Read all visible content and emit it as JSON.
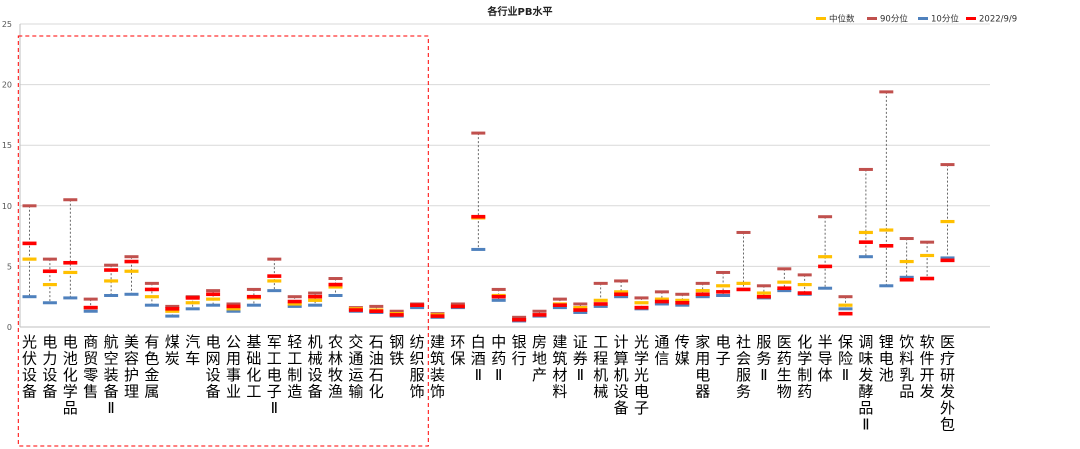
{
  "chart_data": {
    "type": "range-markers",
    "title": "各行业PB水平",
    "ylim": [
      0,
      25
    ],
    "yticks": [
      0,
      5,
      10,
      15,
      20,
      25
    ],
    "grid": true,
    "legend_position": "top-right",
    "series": [
      {
        "key": "median",
        "name": "中位数",
        "color": "#FFC000"
      },
      {
        "key": "p90",
        "name": "90分位",
        "color": "#C0504D"
      },
      {
        "key": "p10",
        "name": "10分位",
        "color": "#4F81BD"
      },
      {
        "key": "current",
        "name": "2022/9/9",
        "color": "#FF0000"
      }
    ],
    "categories": [
      "光伏设备",
      "电力设备",
      "电池化学品",
      "商贸零售",
      "航空装备Ⅱ",
      "美容护理",
      "有色金属",
      "煤炭",
      "汽车",
      "电网设备",
      "公用事业",
      "基础化工",
      "军工电子Ⅱ",
      "轻工制造",
      "机械设备",
      "农林牧渔",
      "交通运输",
      "石油石化",
      "钢铁",
      "纺织服饰",
      "建筑装饰",
      "环保",
      "白酒Ⅱ",
      "中药Ⅱ",
      "银行",
      "房地产",
      "建筑材料",
      "证券Ⅱ",
      "工程机械",
      "计算机设备",
      "光学光电子",
      "通信",
      "传媒",
      "家用电器",
      "电子",
      "社会服务",
      "服务Ⅱ",
      "医药生物",
      "化学制药",
      "半导体",
      "保险Ⅱ",
      "调味发酵品Ⅱ",
      "锂电池",
      "饮料乳品",
      "软件开发",
      "医疗研发外包"
    ],
    "p90": [
      10.0,
      5.6,
      10.5,
      2.3,
      5.1,
      5.8,
      3.6,
      1.7,
      2.5,
      3.0,
      1.9,
      3.1,
      5.6,
      2.5,
      2.8,
      4.0,
      1.6,
      1.7,
      1.3,
      1.9,
      1.1,
      1.9,
      16.0,
      3.1,
      0.8,
      1.3,
      2.3,
      1.9,
      3.6,
      3.8,
      2.4,
      2.9,
      2.7,
      3.6,
      4.5,
      7.8,
      3.4,
      4.8,
      4.3,
      9.1,
      2.5,
      13.0,
      19.4,
      7.3,
      7.0,
      13.4
    ],
    "median": [
      5.6,
      3.5,
      4.5,
      1.6,
      3.8,
      4.6,
      2.5,
      1.3,
      2.0,
      2.3,
      1.5,
      2.4,
      3.8,
      1.9,
      2.2,
      3.3,
      1.5,
      1.4,
      1.1,
      1.8,
      1.0,
      1.7,
      9.0,
      2.6,
      0.6,
      1.0,
      1.9,
      1.6,
      2.2,
      2.9,
      2.0,
      2.3,
      2.2,
      3.0,
      3.4,
      3.6,
      2.8,
      3.7,
      3.5,
      5.8,
      1.8,
      7.8,
      8.0,
      5.4,
      5.9,
      8.7
    ],
    "p10": [
      2.5,
      2.0,
      2.4,
      1.3,
      2.6,
      2.7,
      1.8,
      0.9,
      1.5,
      1.8,
      1.3,
      1.8,
      3.0,
      1.7,
      1.8,
      2.6,
      1.3,
      1.2,
      0.9,
      1.6,
      0.8,
      1.6,
      6.4,
      2.2,
      0.5,
      0.9,
      1.6,
      1.2,
      1.7,
      2.5,
      1.5,
      1.9,
      1.8,
      2.5,
      2.6,
      3.1,
      2.4,
      3.0,
      2.7,
      3.2,
      1.5,
      5.8,
      3.4,
      4.1,
      4.0,
      5.7
    ],
    "current": [
      6.9,
      4.6,
      5.3,
      1.6,
      4.7,
      5.4,
      3.1,
      1.5,
      2.4,
      2.7,
      1.7,
      2.5,
      4.2,
      2.1,
      2.5,
      3.5,
      1.4,
      1.3,
      1.0,
      1.8,
      0.9,
      1.7,
      9.1,
      2.5,
      0.6,
      1.0,
      1.8,
      1.4,
      1.9,
      2.7,
      1.6,
      2.1,
      2.0,
      2.7,
      2.9,
      3.1,
      2.5,
      3.2,
      2.8,
      5.0,
      1.1,
      7.0,
      6.7,
      3.9,
      4.0,
      5.5
    ],
    "annotation": {
      "type": "dashed-box",
      "color": "#FF0000",
      "from_category": "光伏设备",
      "to_category": "纺织服饰"
    }
  }
}
